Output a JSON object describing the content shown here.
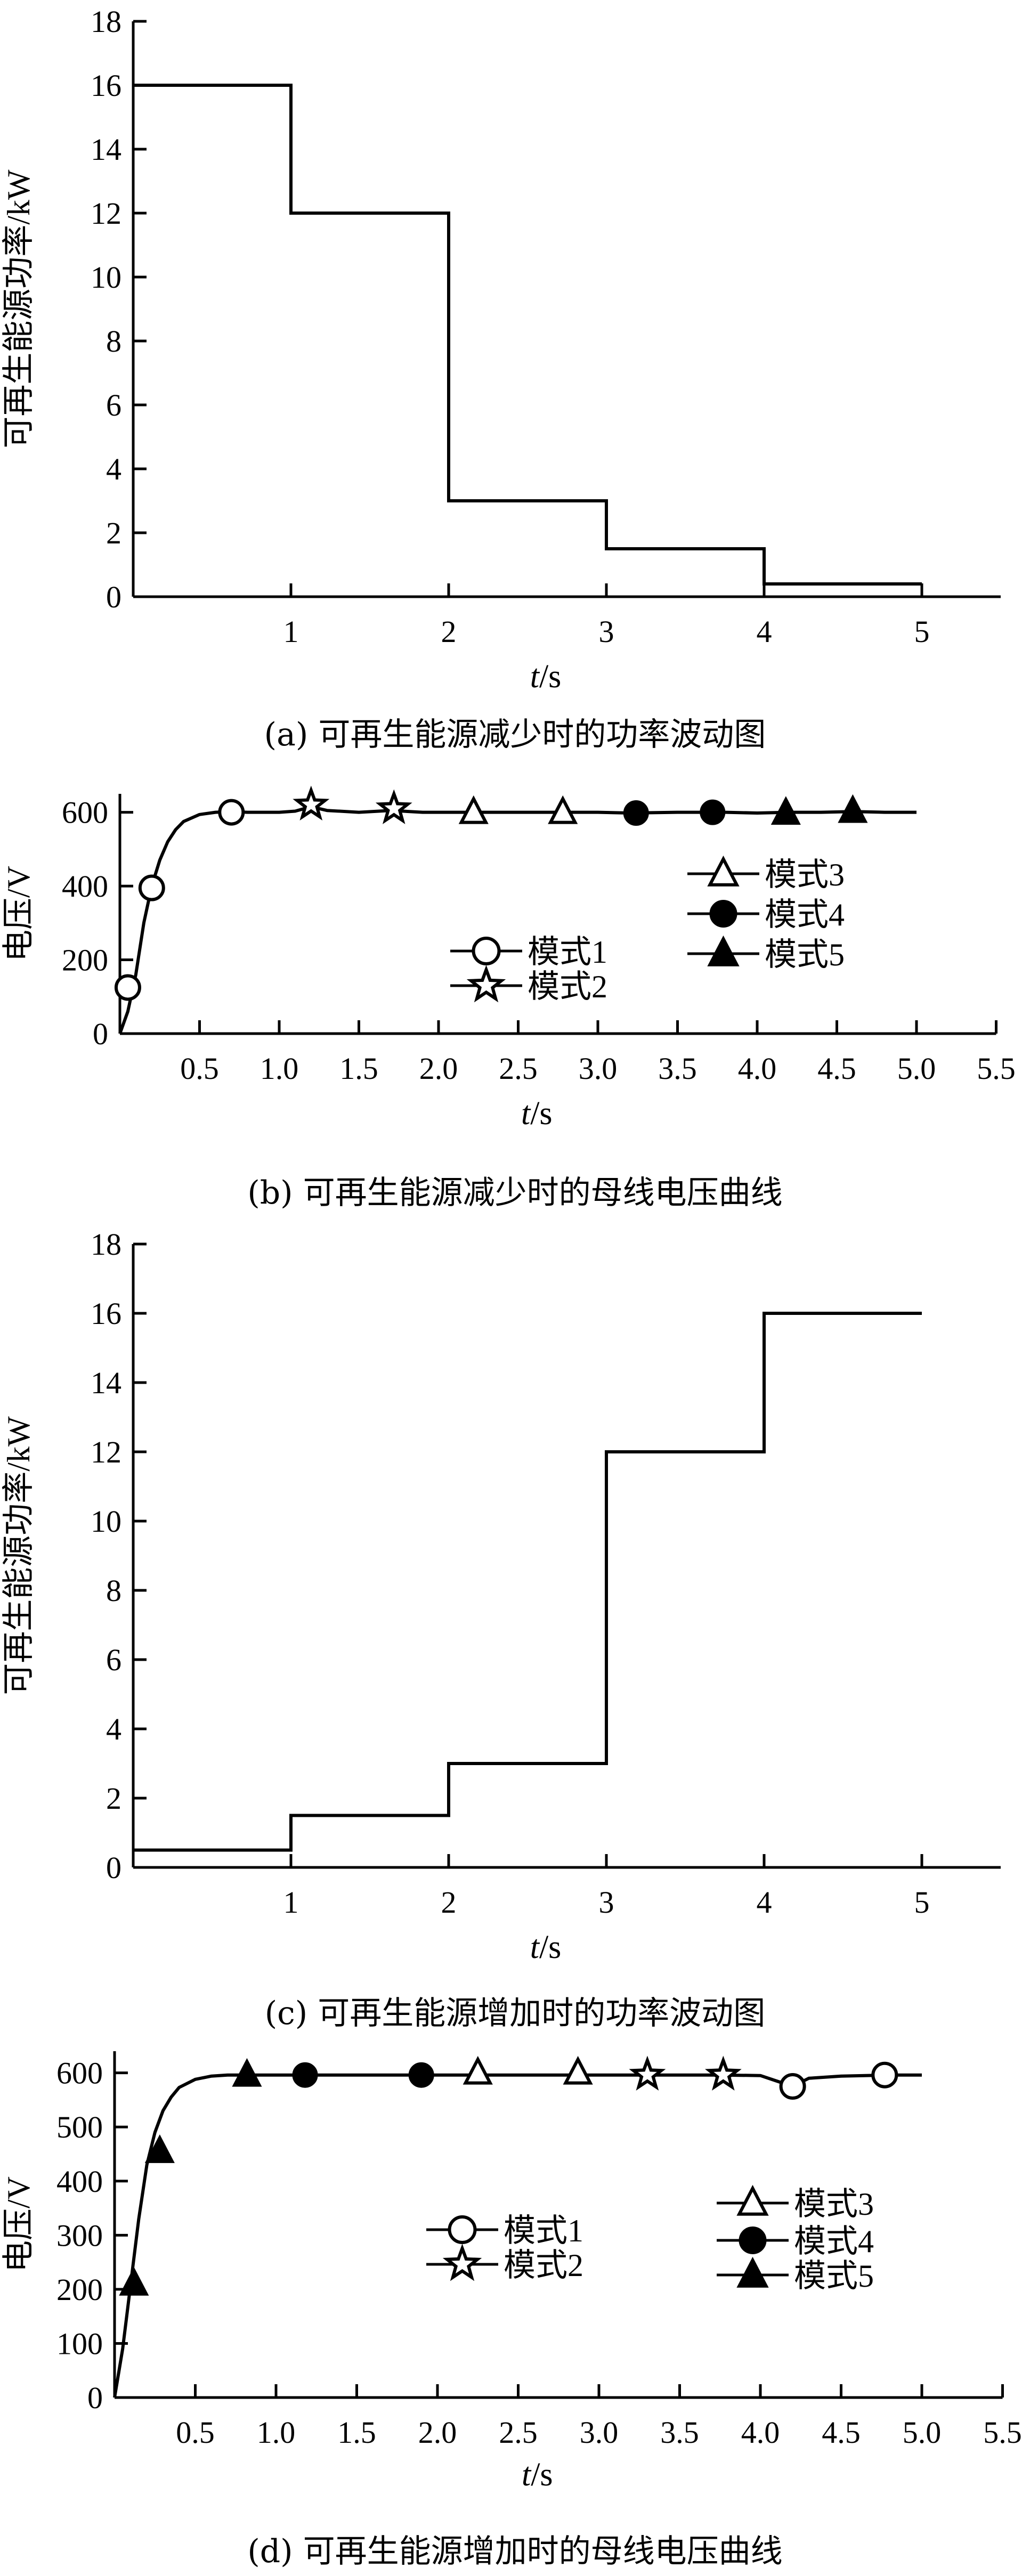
{
  "chart_data": [
    {
      "type": "line",
      "panel_id": "a",
      "caption": "(a) 可再生能源减少时的功率波动图",
      "xlabel_italic": "t",
      "xlabel_unit": "/s",
      "ylabel": "可再生能源功率/kW",
      "xlim": [
        0,
        5.5
      ],
      "ylim": [
        0,
        18
      ],
      "xticks": [
        1,
        2,
        3,
        4,
        5
      ],
      "yticks": [
        0,
        2,
        4,
        6,
        8,
        10,
        12,
        14,
        16,
        18
      ],
      "grid": false,
      "series": [
        {
          "x": [
            0,
            1,
            1,
            2,
            2,
            3,
            3,
            4,
            4,
            5
          ],
          "y": [
            16,
            16,
            12,
            12,
            3,
            3,
            1.5,
            1.5,
            0.4,
            0.4
          ]
        }
      ]
    },
    {
      "type": "line",
      "panel_id": "b",
      "caption": "(b) 可再生能源减少时的母线电压曲线",
      "xlabel_italic": "t",
      "xlabel_unit": "/s",
      "ylabel": "电压/V",
      "xlim": [
        0,
        5.5
      ],
      "ylim": [
        0,
        650
      ],
      "xticks": [
        0.5,
        1.0,
        1.5,
        2.0,
        2.5,
        3.0,
        3.5,
        4.0,
        4.5,
        5.0,
        5.5
      ],
      "xtick_labels": [
        "0.5",
        "1.0",
        "1.5",
        "2.0",
        "2.5",
        "3.0",
        "3.5",
        "4.0",
        "4.5",
        "5.0",
        "5.5"
      ],
      "yticks": [
        0,
        200,
        400,
        600
      ],
      "grid": false,
      "legend_placement": "center-right",
      "legend": [
        {
          "label": "模式1",
          "marker": "circle-open"
        },
        {
          "label": "模式2",
          "marker": "star-open"
        },
        {
          "label": "模式3",
          "marker": "triangle-open"
        },
        {
          "label": "模式4",
          "marker": "circle-filled"
        },
        {
          "label": "模式5",
          "marker": "triangle-filled"
        }
      ],
      "curve": {
        "x": [
          0,
          0.05,
          0.1,
          0.15,
          0.2,
          0.25,
          0.3,
          0.35,
          0.4,
          0.5,
          0.6,
          0.7,
          0.8,
          1.0,
          1.1,
          1.2,
          1.3,
          1.5,
          1.7,
          1.9,
          2.2,
          2.5,
          2.8,
          3.0,
          3.2,
          3.5,
          3.8,
          4.0,
          4.2,
          4.4,
          4.6,
          4.8,
          5.0
        ],
        "y": [
          0,
          60,
          160,
          300,
          400,
          470,
          520,
          553,
          575,
          594,
          600,
          602,
          600,
          600,
          603,
          615,
          605,
          600,
          605,
          600,
          600,
          600,
          600,
          600,
          598,
          600,
          600,
          598,
          600,
          600,
          602,
          600,
          600
        ]
      },
      "markers": [
        {
          "marker": "circle-open",
          "points": [
            [
              0.05,
              125
            ],
            [
              0.2,
              395
            ],
            [
              0.7,
              600
            ]
          ]
        },
        {
          "marker": "star-open",
          "points": [
            [
              1.2,
              620
            ],
            [
              1.72,
              610
            ]
          ]
        },
        {
          "marker": "triangle-open",
          "points": [
            [
              2.22,
              600
            ],
            [
              2.78,
              600
            ]
          ]
        },
        {
          "marker": "circle-filled",
          "points": [
            [
              3.24,
              598
            ],
            [
              3.72,
              600
            ]
          ]
        },
        {
          "marker": "triangle-filled",
          "points": [
            [
              4.18,
              598
            ],
            [
              4.6,
              603
            ]
          ]
        }
      ]
    },
    {
      "type": "line",
      "panel_id": "c",
      "caption": "(c) 可再生能源增加时的功率波动图",
      "xlabel_italic": "t",
      "xlabel_unit": "/s",
      "ylabel": "可再生能源功率/kW",
      "xlim": [
        0,
        5.5
      ],
      "ylim": [
        0,
        18
      ],
      "xticks": [
        1,
        2,
        3,
        4,
        5
      ],
      "yticks": [
        0,
        2,
        4,
        6,
        8,
        10,
        12,
        14,
        16,
        18
      ],
      "grid": false,
      "series": [
        {
          "x": [
            0,
            1,
            1,
            2,
            2,
            3,
            3,
            4,
            4,
            5
          ],
          "y": [
            0.5,
            0.5,
            1.5,
            1.5,
            3,
            3,
            12,
            12,
            16,
            16
          ]
        }
      ]
    },
    {
      "type": "line",
      "panel_id": "d",
      "caption": "(d) 可再生能源增加时的母线电压曲线",
      "xlabel_italic": "t",
      "xlabel_unit": "/s",
      "ylabel": "电压/V",
      "xlim": [
        0,
        5.5
      ],
      "ylim": [
        0,
        640
      ],
      "xticks": [
        0.5,
        1.0,
        1.5,
        2.0,
        2.5,
        3.0,
        3.5,
        4.0,
        4.5,
        5.0,
        5.5
      ],
      "xtick_labels": [
        "0.5",
        "1.0",
        "1.5",
        "2.0",
        "2.5",
        "3.0",
        "3.5",
        "4.0",
        "4.5",
        "5.0",
        "5.5"
      ],
      "yticks": [
        0,
        100,
        200,
        300,
        400,
        500,
        600
      ],
      "grid": false,
      "legend_placement": "center",
      "legend": [
        {
          "label": "模式1",
          "marker": "circle-open"
        },
        {
          "label": "模式2",
          "marker": "star-open"
        },
        {
          "label": "模式3",
          "marker": "triangle-open"
        },
        {
          "label": "模式4",
          "marker": "circle-filled"
        },
        {
          "label": "模式5",
          "marker": "triangle-filled"
        }
      ],
      "curve": {
        "x": [
          0,
          0.05,
          0.1,
          0.15,
          0.2,
          0.25,
          0.3,
          0.35,
          0.4,
          0.5,
          0.6,
          0.7,
          0.8,
          1.0,
          1.2,
          1.5,
          2.0,
          2.5,
          3.0,
          3.3,
          3.5,
          3.75,
          4.0,
          4.1,
          4.2,
          4.3,
          4.5,
          4.8,
          5.0
        ],
        "y": [
          0,
          90,
          210,
          330,
          430,
          490,
          530,
          555,
          573,
          588,
          594,
          596,
          596,
          596,
          596,
          596,
          596,
          596,
          596,
          596,
          596,
          596,
          595,
          585,
          575,
          590,
          594,
          596,
          596
        ]
      },
      "markers": [
        {
          "marker": "triangle-filled",
          "points": [
            [
              0.12,
              210
            ],
            [
              0.28,
              455
            ],
            [
              0.82,
              596
            ]
          ]
        },
        {
          "marker": "circle-filled",
          "points": [
            [
              1.18,
              596
            ],
            [
              1.9,
              596
            ]
          ]
        },
        {
          "marker": "triangle-open",
          "points": [
            [
              2.25,
              600
            ],
            [
              2.87,
              600
            ]
          ]
        },
        {
          "marker": "star-open",
          "points": [
            [
              3.3,
              596
            ],
            [
              3.77,
              596
            ]
          ]
        },
        {
          "marker": "circle-open",
          "points": [
            [
              4.2,
              575
            ],
            [
              4.77,
              596
            ]
          ]
        }
      ]
    }
  ]
}
